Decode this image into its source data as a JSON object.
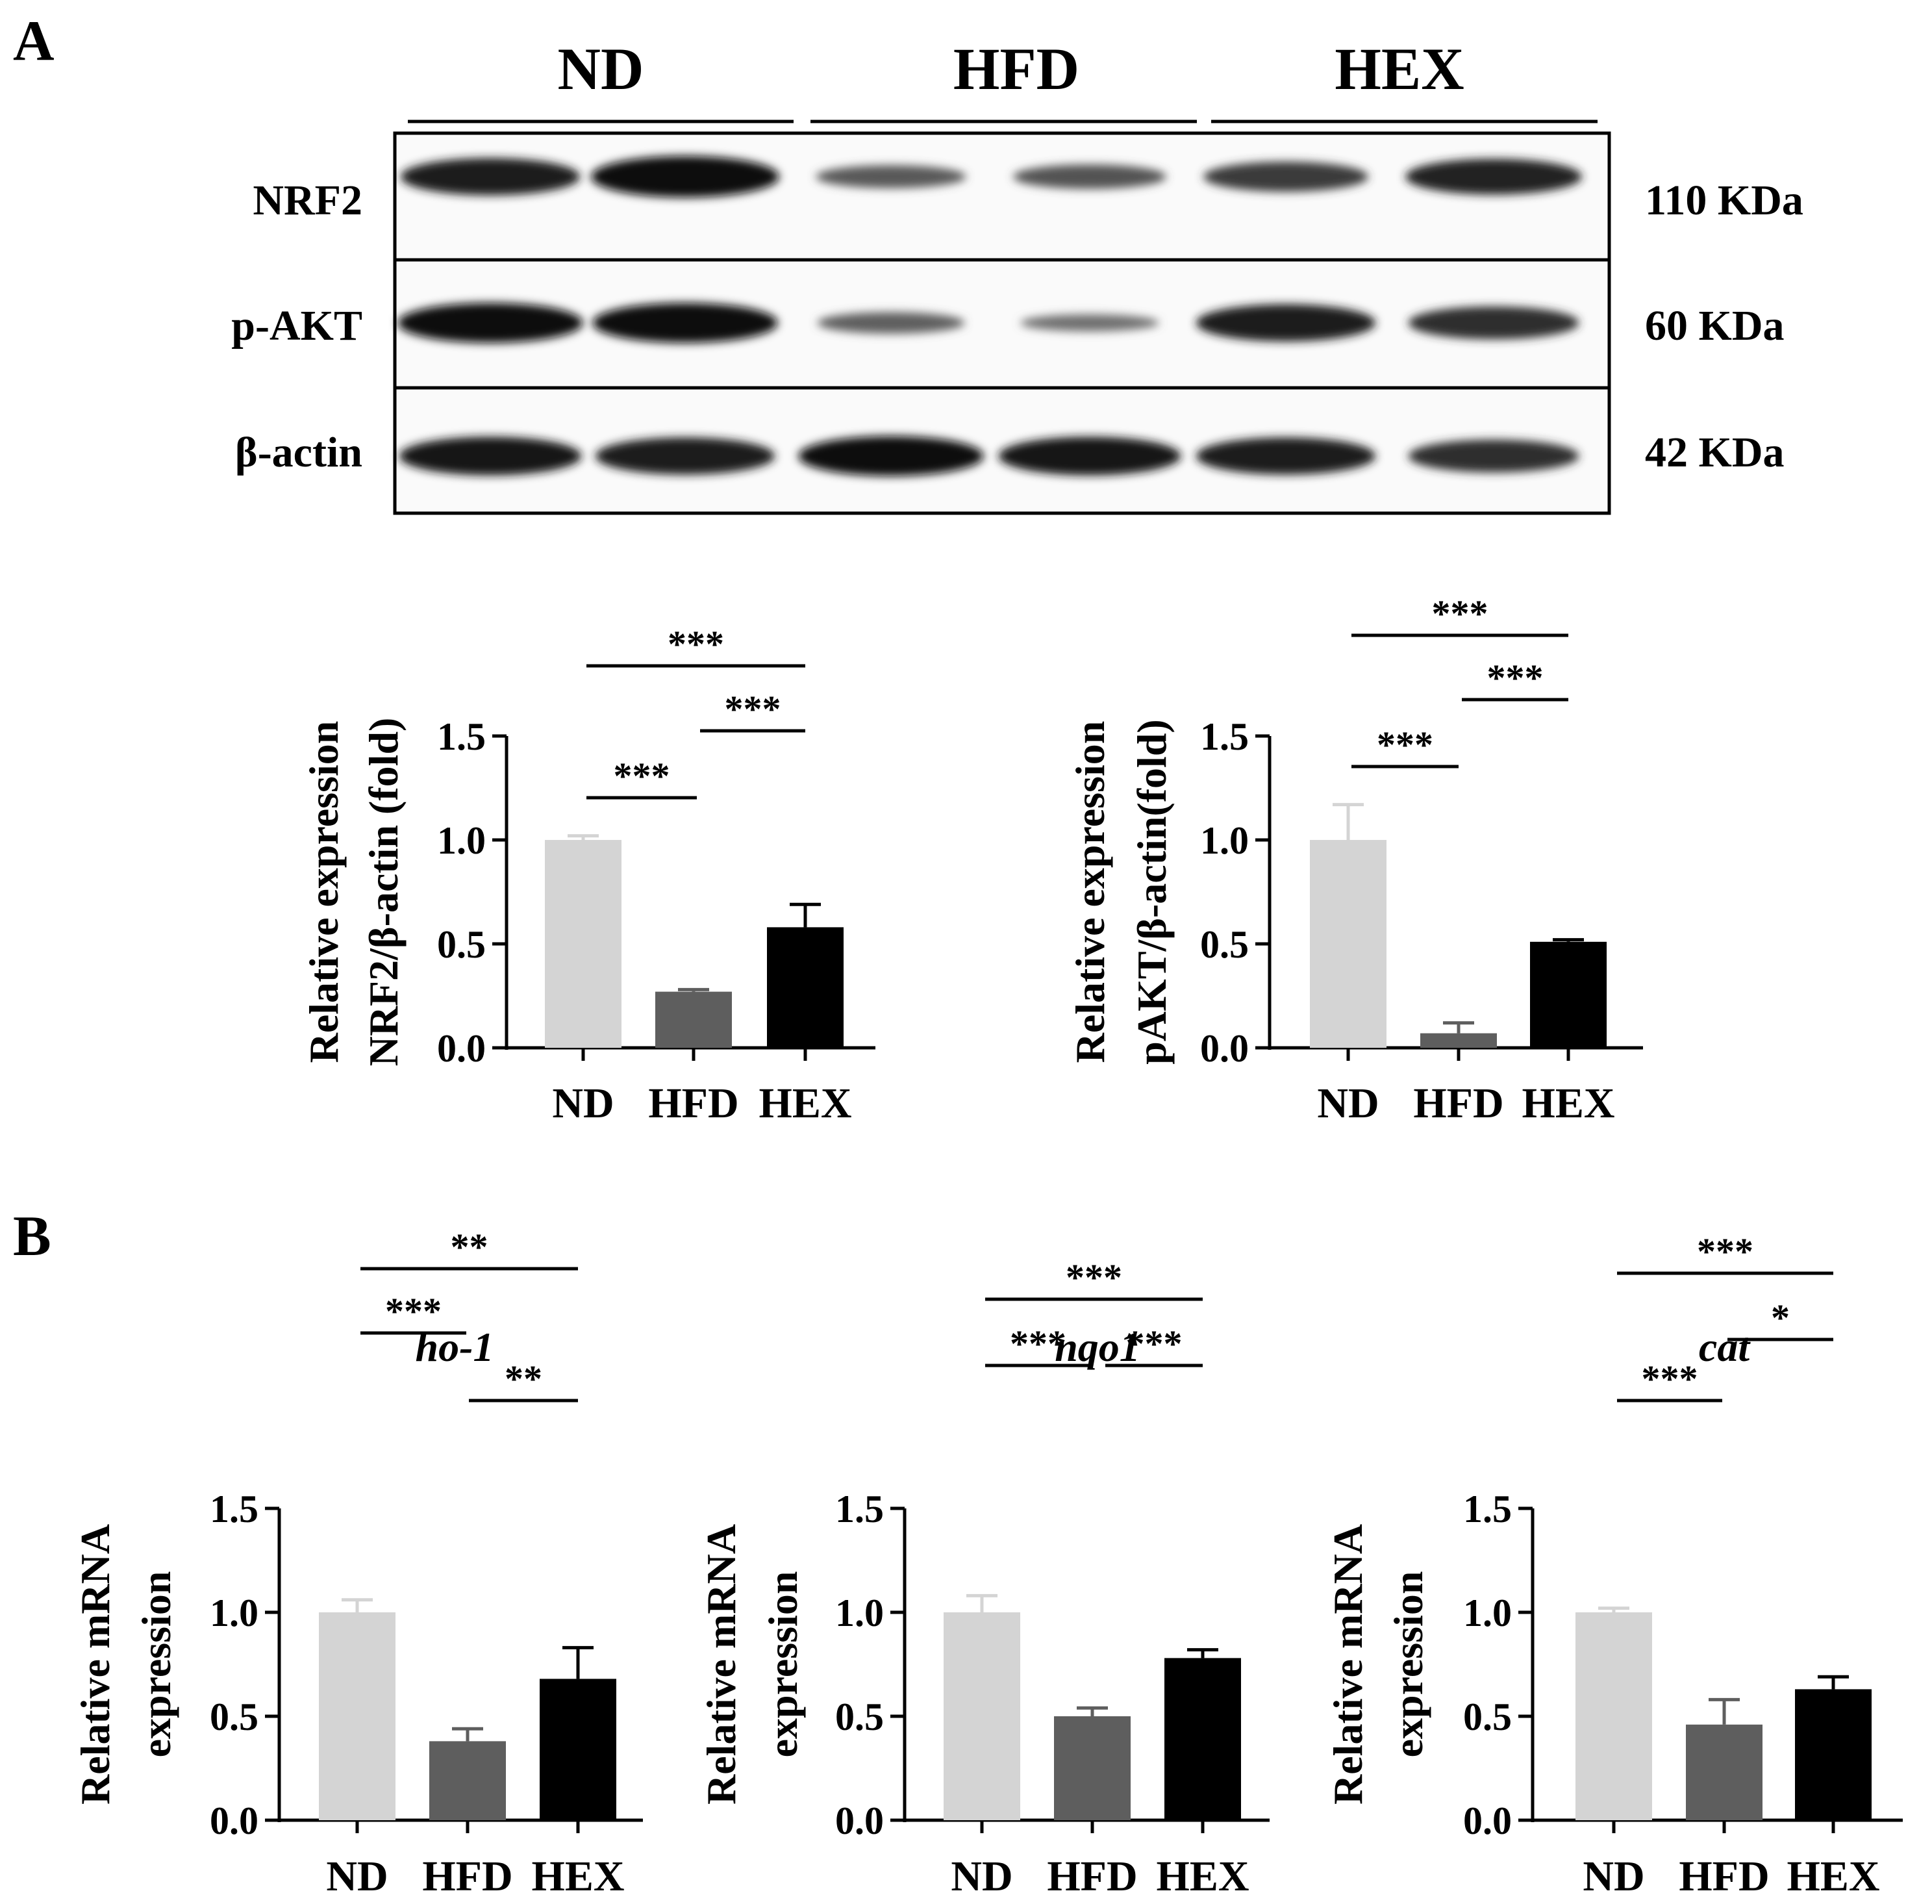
{
  "figure": {
    "panel_a_letter": "A",
    "panel_b_letter": "B"
  },
  "blot": {
    "groups": [
      "ND",
      "HFD",
      "HEX"
    ],
    "rows": [
      {
        "name": "NRF2",
        "kda": "110 KDa",
        "band_intensity": [
          0.85,
          1.0,
          0.35,
          0.4,
          0.6,
          0.8
        ]
      },
      {
        "name": "p-AKT",
        "kda": "60 KDa",
        "band_intensity": [
          0.95,
          0.95,
          0.3,
          0.15,
          0.85,
          0.7
        ]
      },
      {
        "name": "β-actin",
        "kda": "42 KDa",
        "band_intensity": [
          0.9,
          0.85,
          0.95,
          0.9,
          0.85,
          0.7
        ]
      }
    ]
  },
  "colors": {
    "ND": "#d4d4d4",
    "HFD": "#5e5e5e",
    "HEX": "#000000"
  },
  "chart_data": [
    {
      "type": "bar",
      "panel": "A",
      "title": "",
      "categories": [
        "ND",
        "HFD",
        "HEX"
      ],
      "values": [
        1.0,
        0.27,
        0.58
      ],
      "errors": [
        0.02,
        0.01,
        0.11
      ],
      "ylabel_line1": "Relative expression",
      "ylabel_line2": "NRF2/β-actin (fold)",
      "ylim": [
        0,
        1.5
      ],
      "yticks": [
        "0.0",
        "0.5",
        "1.0",
        "1.5"
      ],
      "significance": [
        {
          "from": 0,
          "to": 1,
          "label": "***"
        },
        {
          "from": 1,
          "to": 2,
          "label": "***"
        },
        {
          "from": 0,
          "to": 2,
          "label": "***"
        }
      ]
    },
    {
      "type": "bar",
      "panel": "A",
      "title": "",
      "categories": [
        "ND",
        "HFD",
        "HEX"
      ],
      "values": [
        1.0,
        0.07,
        0.51
      ],
      "errors": [
        0.17,
        0.05,
        0.01
      ],
      "ylabel_line1": "Relative expression",
      "ylabel_line2": "pAKT/β-actin(fold)",
      "ylim": [
        0,
        1.5
      ],
      "yticks": [
        "0.0",
        "0.5",
        "1.0",
        "1.5"
      ],
      "significance": [
        {
          "from": 0,
          "to": 1,
          "label": "***"
        },
        {
          "from": 1,
          "to": 2,
          "label": "***"
        },
        {
          "from": 0,
          "to": 2,
          "label": "***"
        }
      ]
    },
    {
      "type": "bar",
      "panel": "B",
      "title": "ho-1",
      "categories": [
        "ND",
        "HFD",
        "HEX"
      ],
      "values": [
        1.0,
        0.38,
        0.68
      ],
      "errors": [
        0.06,
        0.06,
        0.15
      ],
      "ylabel_line1": "Relative mRNA",
      "ylabel_line2": "expression",
      "ylim": [
        0,
        1.5
      ],
      "yticks": [
        "0.0",
        "0.5",
        "1.0",
        "1.5"
      ],
      "significance": [
        {
          "from": 0,
          "to": 1,
          "label": "***"
        },
        {
          "from": 1,
          "to": 2,
          "label": "**"
        },
        {
          "from": 0,
          "to": 2,
          "label": "**"
        }
      ]
    },
    {
      "type": "bar",
      "panel": "B",
      "title": "nqo1",
      "categories": [
        "ND",
        "HFD",
        "HEX"
      ],
      "values": [
        1.0,
        0.5,
        0.78
      ],
      "errors": [
        0.08,
        0.04,
        0.04
      ],
      "ylabel_line1": "Relative mRNA",
      "ylabel_line2": "expression",
      "ylim": [
        0,
        1.5
      ],
      "yticks": [
        "0.0",
        "0.5",
        "1.0",
        "1.5"
      ],
      "significance": [
        {
          "from": 0,
          "to": 1,
          "label": "***"
        },
        {
          "from": 1,
          "to": 2,
          "label": "***"
        },
        {
          "from": 0,
          "to": 2,
          "label": "***"
        }
      ]
    },
    {
      "type": "bar",
      "panel": "B",
      "title": "cat",
      "categories": [
        "ND",
        "HFD",
        "HEX"
      ],
      "values": [
        1.0,
        0.46,
        0.63
      ],
      "errors": [
        0.02,
        0.12,
        0.06
      ],
      "ylabel_line1": "Relative mRNA",
      "ylabel_line2": "expression",
      "ylim": [
        0,
        1.5
      ],
      "yticks": [
        "0.0",
        "0.5",
        "1.0",
        "1.5"
      ],
      "significance": [
        {
          "from": 0,
          "to": 1,
          "label": "***"
        },
        {
          "from": 1,
          "to": 2,
          "label": "*"
        },
        {
          "from": 0,
          "to": 2,
          "label": "***"
        }
      ]
    }
  ]
}
